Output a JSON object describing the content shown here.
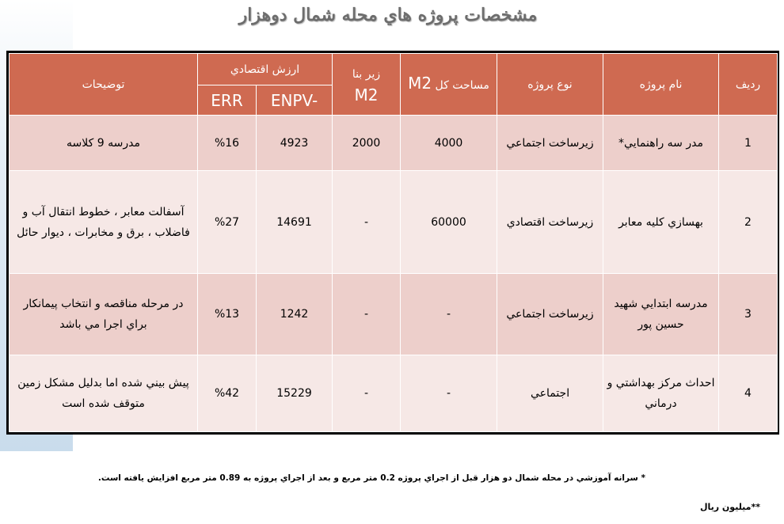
{
  "title": "مشخصات پروژه هاي محله شمال دوهزار",
  "headers": {
    "row_no": "رديف",
    "project_name": "نام پروژه",
    "project_type": "نوع پروژه",
    "total_area": "مساحت کل",
    "total_area_unit": "M2",
    "built_area": "زير بنا",
    "built_area_unit": "M2",
    "economic_value": "ارزش اقتصادي",
    "enpv": "ENPV-",
    "err": "ERR",
    "description": "توضيحات"
  },
  "rows": [
    {
      "no": "1",
      "name": "مدر سه راهنمايي*",
      "type": "زيرساخت اجتماعي",
      "area": "4000",
      "built": "2000",
      "enpv": "4923",
      "err": "%16",
      "desc": "مدرسه 9 کلاسه"
    },
    {
      "no": "2",
      "name": "بهسازي کليه معابر",
      "type": "زيرساخت اقتصادي",
      "area": "60000",
      "built": "-",
      "enpv": "14691",
      "err": "%27",
      "desc": "آسفالت معابر ، خطوط انتقال آب و فاضلاب ، برق و مخابرات ، ديوار حائل"
    },
    {
      "no": "3",
      "name": "مدرسه ابتدايي شهيد حسين پور",
      "type": "زيرساخت اجتماعي",
      "area": "-",
      "built": "-",
      "enpv": "1242",
      "err": "%13",
      "desc": "در مرحله مناقصه و انتخاب پيمانکار براي اجرا مي باشد"
    },
    {
      "no": "4",
      "name": "احداث مرکز بهداشتي و درماني",
      "type": "اجتماعي",
      "area": "-",
      "built": "-",
      "enpv": "15229",
      "err": "%42",
      "desc": "پيش بيني شده اما بدليل مشکل زمين متوقف شده است"
    }
  ],
  "footnotes": {
    "note1": "* سرانه آموزشي در محله شمال دو هزار قبل از اجراي پروژه 0.2 متر مربع و بعد از اجراي پروژه به 0.89 متر مربع افزايش يافته است.",
    "note2": "**ميليون ريال"
  },
  "colors": {
    "header_bg": "#cf6a51",
    "row_odd": "#edcfcb",
    "row_even": "#f6e8e6",
    "title": "#6d6d6d"
  }
}
